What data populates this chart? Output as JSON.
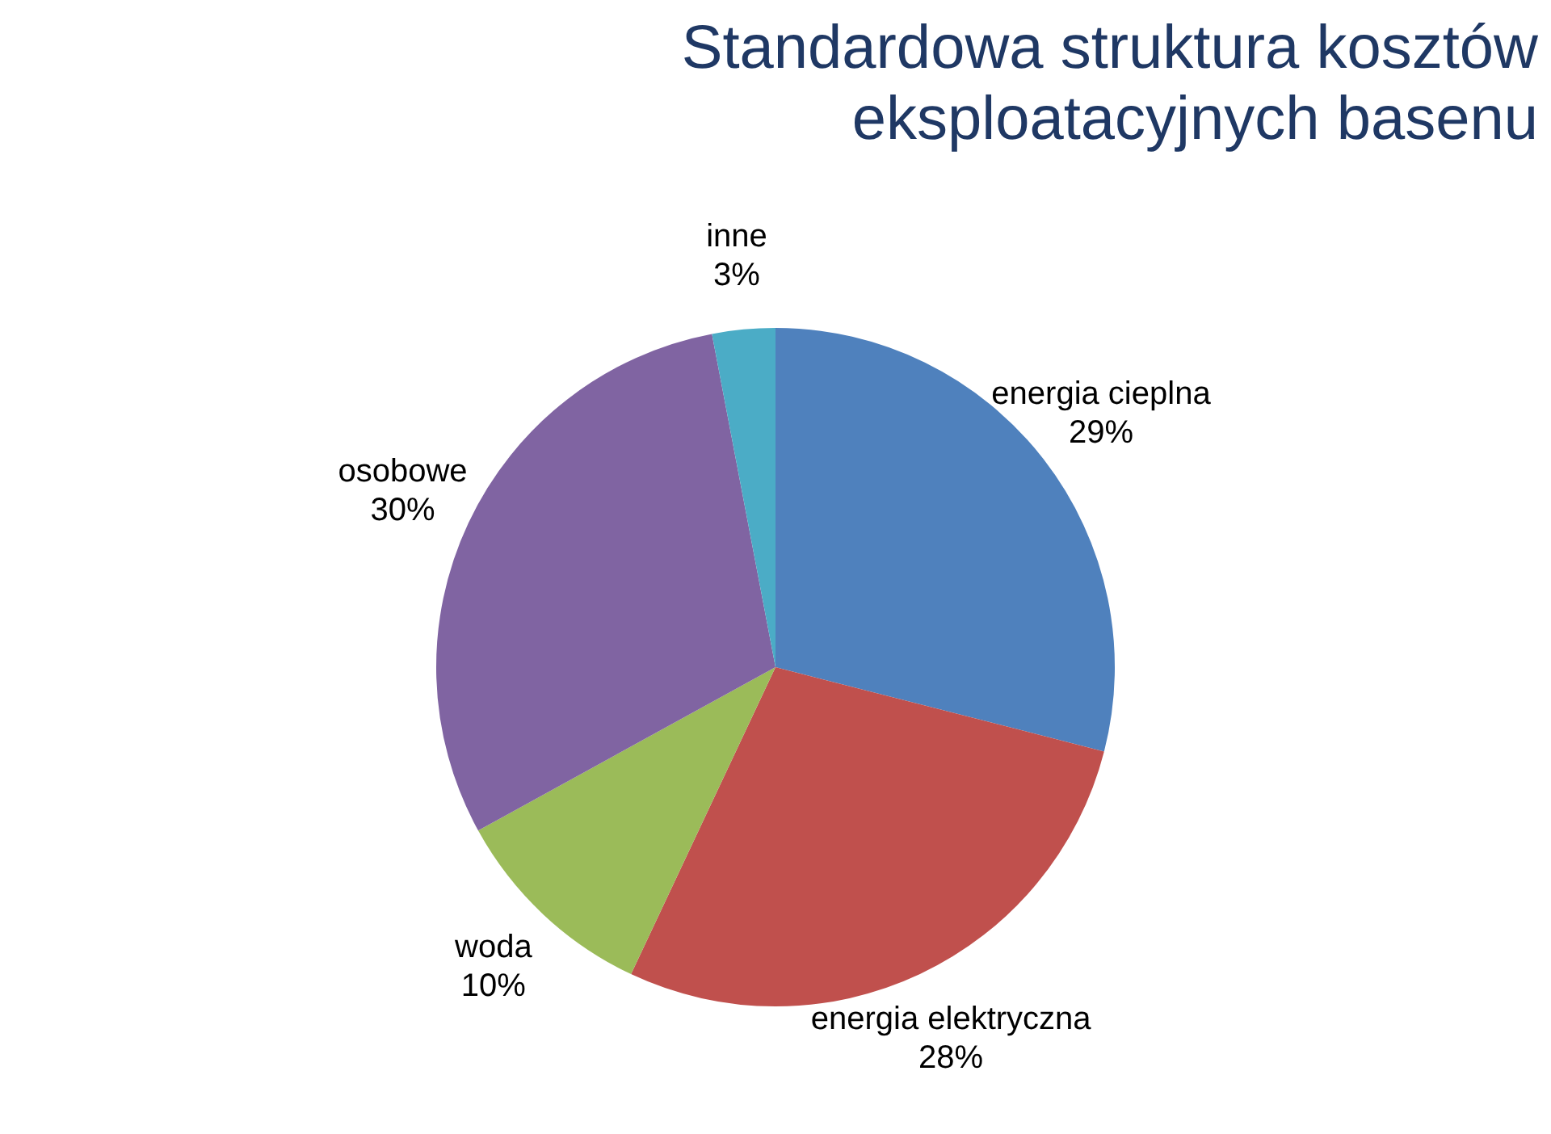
{
  "chart_data": {
    "type": "pie",
    "title": "Standardowa struktura kosztów eksploatacyjnych basenu",
    "categories": [
      "energia cieplna",
      "energia elektryczna",
      "woda",
      "osobowe",
      "inne"
    ],
    "values": [
      29,
      28,
      10,
      30,
      3
    ],
    "value_labels": [
      "29%",
      "28%",
      "10%",
      "30%",
      "3%"
    ],
    "colors": [
      "#4f81bd",
      "#c0504d",
      "#9bbb59",
      "#8064a2",
      "#4bacc6"
    ],
    "legend": false
  }
}
